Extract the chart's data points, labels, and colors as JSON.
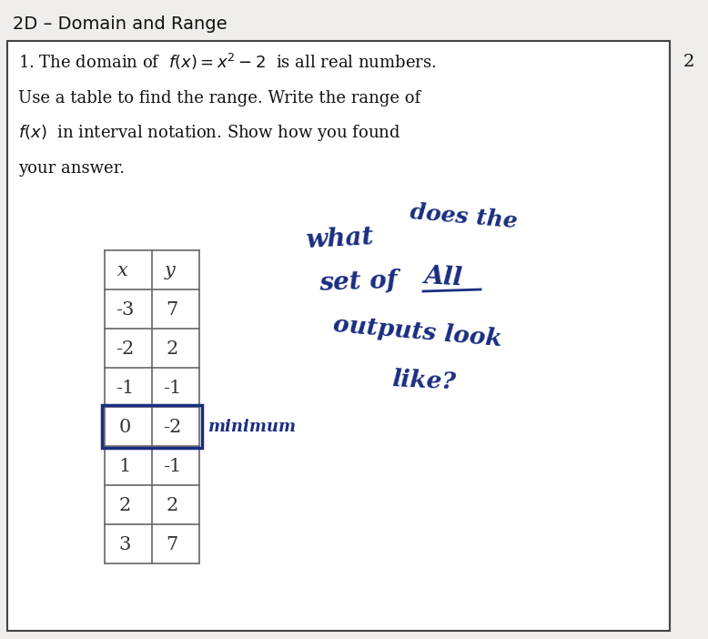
{
  "title": "2D – Domain and Range",
  "problem_line1": "1. The domain of  $f(x) = x^2 - 2$  is all real numbers.",
  "problem_line2": "Use a table to find the range. Write the range of",
  "problem_line3": "$f(x)$  in interval notation. Show how you found",
  "problem_line4": "your answer.",
  "table_headers": [
    "x",
    "y"
  ],
  "table_data": [
    [
      "-3",
      "7"
    ],
    [
      "-2",
      "2"
    ],
    [
      "-1",
      "-1"
    ],
    [
      "0",
      "-2"
    ],
    [
      "1",
      "-1"
    ],
    [
      "2",
      "2"
    ],
    [
      "3",
      "7"
    ]
  ],
  "highlight_row": 3,
  "minimum_label": "minimum",
  "hw_line1a": "what",
  "hw_line1b": "does the",
  "hw_line2a": "set of",
  "hw_line2b": "All",
  "hw_line3": "outputs look",
  "hw_line4": "like?",
  "right_number": "2",
  "bg_color": "#e8e8e8",
  "white_color": "#ffffff",
  "border_color": "#555555",
  "text_color": "#111111",
  "hw_color": "#1a2d80",
  "highlight_border": "#1a2d80",
  "title_font": 14,
  "body_font": 13,
  "table_font": 15,
  "hw_font": 17
}
